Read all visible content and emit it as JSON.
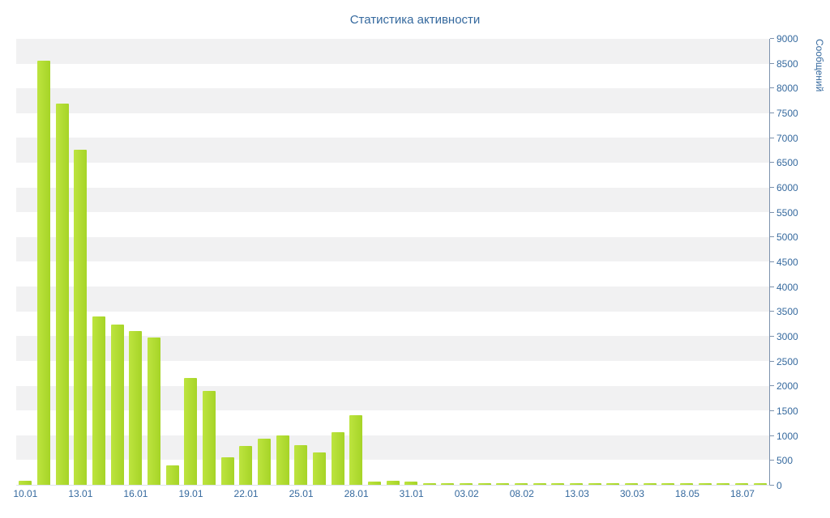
{
  "chart_data": {
    "type": "bar",
    "title": "Статистика активности",
    "xlabel": "",
    "ylabel": "Сообщений",
    "ylim": [
      0,
      9000
    ],
    "y_tick_interval": 500,
    "y_tick_labels": [
      "0",
      "500",
      "1000",
      "1500",
      "2000",
      "2500",
      "3000",
      "3500",
      "4000",
      "4500",
      "5000",
      "5500",
      "6000",
      "6500",
      "7000",
      "7500",
      "8000",
      "8500",
      "9000"
    ],
    "grid": "horizontal-bands",
    "legend": null,
    "values": [
      80,
      8560,
      7700,
      6760,
      3400,
      3230,
      3100,
      2980,
      400,
      2150,
      1890,
      560,
      790,
      930,
      990,
      800,
      650,
      1060,
      1410,
      60,
      75,
      70,
      40,
      30,
      25,
      20,
      20,
      20,
      15,
      15,
      15,
      15,
      15,
      15,
      15,
      15,
      15,
      15,
      15,
      20,
      20
    ],
    "x_tick_labels": [
      "10.01",
      "13.01",
      "16.01",
      "19.01",
      "22.01",
      "25.01",
      "28.01",
      "31.01",
      "03.02",
      "08.02",
      "13.03",
      "30.03",
      "18.05",
      "18.07"
    ],
    "x_tick_indices": [
      0,
      3,
      6,
      9,
      12,
      15,
      18,
      21,
      24,
      27,
      30,
      33,
      36,
      39
    ],
    "colors": {
      "bar": "#a6d427",
      "bar_light": "#bde43f",
      "band": "#f1f1f2",
      "text": "#35699e",
      "axis": "#7d92ad"
    }
  }
}
